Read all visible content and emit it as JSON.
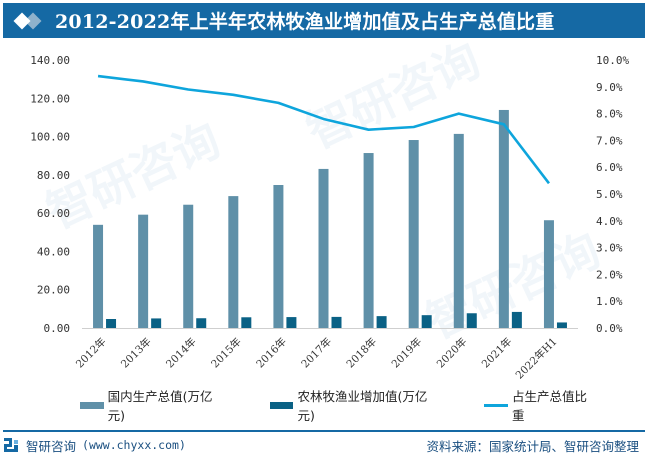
{
  "header": {
    "title": "2012-2022年上半年农林牧渔业增加值及占生产总值比重"
  },
  "chart_data": {
    "type": "bar",
    "title": "2012-2022年上半年农林牧渔业增加值及占生产总值比重",
    "categories": [
      "2012年",
      "2013年",
      "2014年",
      "2015年",
      "2016年",
      "2017年",
      "2018年",
      "2019年",
      "2020年",
      "2021年",
      "2022年H1"
    ],
    "series": [
      {
        "name": "国内生产总值(万亿元)",
        "type": "bar",
        "axis": "left",
        "color": "#5f90a8",
        "values": [
          53.9,
          59.2,
          64.4,
          68.9,
          74.7,
          83.1,
          91.4,
          98.2,
          101.4,
          113.9,
          56.3
        ]
      },
      {
        "name": "农林牧渔业增加值(万亿元)",
        "type": "bar",
        "axis": "left",
        "color": "#0a6185",
        "values": [
          4.7,
          5.0,
          5.1,
          5.6,
          5.7,
          5.8,
          6.2,
          6.7,
          7.7,
          8.4,
          2.9
        ]
      },
      {
        "name": "占生产总值比重",
        "type": "line",
        "axis": "right",
        "color": "#0ea5dc",
        "values": [
          9.4,
          9.2,
          8.9,
          8.7,
          8.4,
          7.8,
          7.4,
          7.5,
          8.0,
          7.6,
          5.4
        ]
      }
    ],
    "y_left": {
      "min": 0,
      "max": 140,
      "ticks": [
        "0.00",
        "20.00",
        "40.00",
        "60.00",
        "80.00",
        "100.00",
        "120.00",
        "140.00"
      ]
    },
    "y_right": {
      "min": 0,
      "max": 10,
      "ticks": [
        "0.0%",
        "1.0%",
        "2.0%",
        "3.0%",
        "4.0%",
        "5.0%",
        "6.0%",
        "7.0%",
        "8.0%",
        "9.0%",
        "10.0%"
      ]
    },
    "xlabel": "",
    "ylabel": "",
    "grid": false,
    "legend": "bottom"
  },
  "legend": {
    "items": [
      {
        "label": "国内生产总值(万亿元)",
        "color": "#5f90a8"
      },
      {
        "label": "农林牧渔业增加值(万亿元)",
        "color": "#0a6185"
      },
      {
        "label": "占生产总值比重",
        "color": "#0ea5dc"
      }
    ]
  },
  "footer": {
    "brand": "智研咨询",
    "url": "(www.chyxx.com)",
    "source": "资料来源：国家统计局、智研咨询整理"
  },
  "watermark": {
    "text": "智研咨询"
  }
}
